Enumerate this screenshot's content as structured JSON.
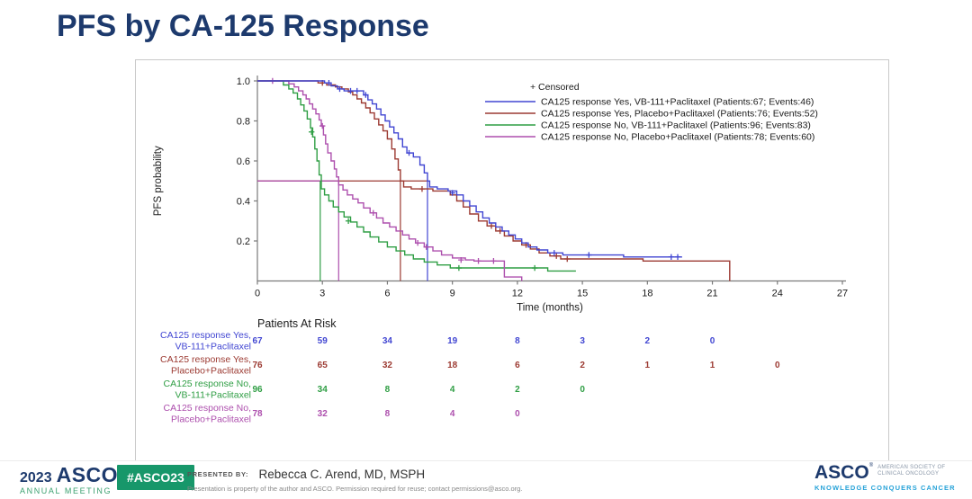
{
  "title": "PFS by CA-125 Response",
  "colors": {
    "title_navy": "#1d3a6d",
    "panel_border": "#c9c9c9",
    "axis": "#7a7a7a",
    "tick_text": "#1a1a1a",
    "footer_green": "#17976a",
    "meeting_green": "#3aa06f",
    "tagline_blue": "#26a2d8"
  },
  "chart_data": {
    "type": "line",
    "subtype": "kaplan-meier-step",
    "title": "",
    "xlabel": "Time (months)",
    "ylabel": "PFS probability",
    "xlim": [
      0,
      27
    ],
    "ylim": [
      0,
      1.0
    ],
    "xticks": [
      0,
      3,
      6,
      9,
      12,
      15,
      18,
      21,
      24,
      27
    ],
    "yticks": [
      0.2,
      0.4,
      0.6,
      0.8,
      1.0
    ],
    "grid": false,
    "legend_position": "top-right",
    "censored_label": "+ Censored",
    "at_risk_header": "Patients At Risk",
    "median_rule": {
      "p": 0.5,
      "horizontal_segments": [
        {
          "from": 0,
          "to": 7.85,
          "series": 1
        },
        {
          "from": 0,
          "to": 3.75,
          "series": 3
        }
      ]
    },
    "series": [
      {
        "name": "CA125 response Yes, VB-111+Paclitaxel (Patients:67; Events:46)",
        "label_lines": [
          "CA125 response Yes,",
          "VB-111+Paclitaxel"
        ],
        "color": "#4146d2",
        "median_months": 7.85,
        "end_drop": false,
        "at_risk": {
          "months": [
            0,
            3,
            6,
            9,
            12,
            15,
            18,
            21
          ],
          "counts": [
            67,
            59,
            34,
            19,
            8,
            3,
            2,
            0
          ]
        },
        "steps": [
          [
            0,
            1
          ],
          [
            3.1,
            0.99
          ],
          [
            3.4,
            0.975
          ],
          [
            3.7,
            0.96
          ],
          [
            4.0,
            0.95
          ],
          [
            4.9,
            0.93
          ],
          [
            5.1,
            0.905
          ],
          [
            5.3,
            0.885
          ],
          [
            5.5,
            0.86
          ],
          [
            5.7,
            0.83
          ],
          [
            5.9,
            0.8
          ],
          [
            6.1,
            0.77
          ],
          [
            6.3,
            0.74
          ],
          [
            6.5,
            0.71
          ],
          [
            6.7,
            0.67
          ],
          [
            6.9,
            0.64
          ],
          [
            7.2,
            0.62
          ],
          [
            7.5,
            0.58
          ],
          [
            7.7,
            0.54
          ],
          [
            7.85,
            0.5
          ],
          [
            7.95,
            0.47
          ],
          [
            8.3,
            0.46
          ],
          [
            8.8,
            0.45
          ],
          [
            9.2,
            0.43
          ],
          [
            9.5,
            0.4
          ],
          [
            9.8,
            0.375
          ],
          [
            10.1,
            0.345
          ],
          [
            10.4,
            0.315
          ],
          [
            10.7,
            0.29
          ],
          [
            11.0,
            0.27
          ],
          [
            11.3,
            0.25
          ],
          [
            11.6,
            0.23
          ],
          [
            11.9,
            0.21
          ],
          [
            12.2,
            0.19
          ],
          [
            12.5,
            0.17
          ],
          [
            12.9,
            0.155
          ],
          [
            13.4,
            0.14
          ],
          [
            14.1,
            0.13
          ],
          [
            16.9,
            0.12
          ],
          [
            19.6,
            0.12
          ]
        ],
        "censors": [
          [
            3.3,
            0.99
          ],
          [
            3.8,
            0.96
          ],
          [
            4.3,
            0.95
          ],
          [
            4.6,
            0.95
          ],
          [
            5.0,
            0.93
          ],
          [
            7.0,
            0.64
          ],
          [
            9.0,
            0.44
          ],
          [
            13.7,
            0.14
          ],
          [
            15.3,
            0.13
          ],
          [
            19.1,
            0.12
          ],
          [
            19.4,
            0.12
          ]
        ]
      },
      {
        "name": "CA125 response Yes, Placebo+Paclitaxel (Patients:76; Events:52)",
        "label_lines": [
          "CA125 response Yes,",
          "Placebo+Paclitaxel"
        ],
        "color": "#9c3a32",
        "median_months": 6.6,
        "end_drop": true,
        "at_risk": {
          "months": [
            0,
            3,
            6,
            9,
            12,
            15,
            18,
            21,
            24
          ],
          "counts": [
            76,
            65,
            32,
            18,
            6,
            2,
            1,
            1,
            0
          ]
        },
        "steps": [
          [
            0,
            1
          ],
          [
            2.8,
            0.99
          ],
          [
            3.2,
            0.98
          ],
          [
            3.6,
            0.97
          ],
          [
            3.9,
            0.96
          ],
          [
            4.2,
            0.945
          ],
          [
            4.4,
            0.93
          ],
          [
            4.6,
            0.91
          ],
          [
            4.8,
            0.89
          ],
          [
            5.0,
            0.865
          ],
          [
            5.2,
            0.84
          ],
          [
            5.4,
            0.81
          ],
          [
            5.6,
            0.78
          ],
          [
            5.8,
            0.75
          ],
          [
            6.0,
            0.71
          ],
          [
            6.2,
            0.66
          ],
          [
            6.35,
            0.61
          ],
          [
            6.5,
            0.555
          ],
          [
            6.6,
            0.5
          ],
          [
            6.75,
            0.47
          ],
          [
            7.1,
            0.46
          ],
          [
            8.1,
            0.45
          ],
          [
            8.9,
            0.43
          ],
          [
            9.2,
            0.4
          ],
          [
            9.5,
            0.37
          ],
          [
            9.8,
            0.335
          ],
          [
            10.2,
            0.3
          ],
          [
            10.6,
            0.275
          ],
          [
            11.0,
            0.25
          ],
          [
            11.4,
            0.225
          ],
          [
            11.8,
            0.2
          ],
          [
            12.2,
            0.18
          ],
          [
            12.6,
            0.16
          ],
          [
            13.0,
            0.14
          ],
          [
            13.5,
            0.125
          ],
          [
            14.0,
            0.11
          ],
          [
            17.8,
            0.1
          ],
          [
            21.8,
            0.1
          ]
        ],
        "censors": [
          [
            3.0,
            0.99
          ],
          [
            7.6,
            0.46
          ],
          [
            10.8,
            0.275
          ],
          [
            11.2,
            0.25
          ],
          [
            12.4,
            0.18
          ],
          [
            13.8,
            0.125
          ],
          [
            14.3,
            0.11
          ]
        ]
      },
      {
        "name": "CA125 response No, VB-111+Paclitaxel (Patients:96; Events:83)",
        "label_lines": [
          "CA125 response No,",
          "VB-111+Paclitaxel"
        ],
        "color": "#2f9e44",
        "median_months": 2.9,
        "end_drop": false,
        "at_risk": {
          "months": [
            0,
            3,
            6,
            9,
            12,
            15
          ],
          "counts": [
            96,
            34,
            8,
            4,
            2,
            0
          ]
        },
        "steps": [
          [
            0,
            1
          ],
          [
            1.2,
            0.98
          ],
          [
            1.45,
            0.96
          ],
          [
            1.65,
            0.94
          ],
          [
            1.85,
            0.91
          ],
          [
            2.0,
            0.88
          ],
          [
            2.15,
            0.85
          ],
          [
            2.3,
            0.81
          ],
          [
            2.45,
            0.765
          ],
          [
            2.55,
            0.72
          ],
          [
            2.65,
            0.66
          ],
          [
            2.75,
            0.6
          ],
          [
            2.85,
            0.53
          ],
          [
            2.95,
            0.46
          ],
          [
            3.1,
            0.43
          ],
          [
            3.3,
            0.4
          ],
          [
            3.5,
            0.37
          ],
          [
            3.75,
            0.345
          ],
          [
            4.0,
            0.32
          ],
          [
            4.3,
            0.295
          ],
          [
            4.6,
            0.27
          ],
          [
            4.9,
            0.245
          ],
          [
            5.2,
            0.22
          ],
          [
            5.6,
            0.195
          ],
          [
            6.0,
            0.17
          ],
          [
            6.4,
            0.15
          ],
          [
            6.8,
            0.13
          ],
          [
            7.2,
            0.11
          ],
          [
            7.7,
            0.095
          ],
          [
            8.3,
            0.08
          ],
          [
            8.9,
            0.065
          ],
          [
            13.4,
            0.05
          ],
          [
            14.7,
            0.05
          ]
        ],
        "censors": [
          [
            2.5,
            0.745
          ],
          [
            4.2,
            0.3
          ],
          [
            9.3,
            0.065
          ],
          [
            12.8,
            0.065
          ]
        ]
      },
      {
        "name": "CA125 response No, Placebo+Paclitaxel (Patients:78; Events:60)",
        "label_lines": [
          "CA125 response No,",
          "Placebo+Paclitaxel"
        ],
        "color": "#ad4fad",
        "median_months": 3.75,
        "end_drop": true,
        "at_risk": {
          "months": [
            0,
            3,
            6,
            9,
            12
          ],
          "counts": [
            78,
            32,
            8,
            4,
            0
          ]
        },
        "steps": [
          [
            0,
            1
          ],
          [
            1.45,
            0.985
          ],
          [
            1.7,
            0.97
          ],
          [
            1.9,
            0.95
          ],
          [
            2.1,
            0.93
          ],
          [
            2.25,
            0.91
          ],
          [
            2.4,
            0.885
          ],
          [
            2.55,
            0.86
          ],
          [
            2.7,
            0.835
          ],
          [
            2.85,
            0.805
          ],
          [
            2.95,
            0.775
          ],
          [
            3.05,
            0.73
          ],
          [
            3.15,
            0.685
          ],
          [
            3.25,
            0.64
          ],
          [
            3.4,
            0.6
          ],
          [
            3.55,
            0.56
          ],
          [
            3.65,
            0.52
          ],
          [
            3.75,
            0.48
          ],
          [
            3.95,
            0.455
          ],
          [
            4.15,
            0.43
          ],
          [
            4.4,
            0.41
          ],
          [
            4.65,
            0.39
          ],
          [
            4.9,
            0.365
          ],
          [
            5.2,
            0.34
          ],
          [
            5.5,
            0.315
          ],
          [
            5.8,
            0.29
          ],
          [
            6.1,
            0.27
          ],
          [
            6.4,
            0.25
          ],
          [
            6.7,
            0.23
          ],
          [
            7.0,
            0.21
          ],
          [
            7.3,
            0.19
          ],
          [
            7.7,
            0.17
          ],
          [
            8.1,
            0.15
          ],
          [
            8.5,
            0.13
          ],
          [
            9.0,
            0.115
          ],
          [
            9.6,
            0.105
          ],
          [
            10.0,
            0.1
          ],
          [
            11.4,
            0.02
          ],
          [
            12.2,
            0.02
          ]
        ],
        "censors": [
          [
            0.7,
            1.0
          ],
          [
            3.0,
            0.775
          ],
          [
            5.35,
            0.34
          ],
          [
            7.4,
            0.19
          ],
          [
            7.8,
            0.17
          ],
          [
            9.4,
            0.105
          ],
          [
            10.2,
            0.1
          ],
          [
            10.9,
            0.1
          ]
        ]
      }
    ]
  },
  "footer": {
    "year": "2023",
    "logo_text": "ASCO",
    "reg_mark": "®",
    "meeting": "ANNUAL MEETING",
    "hashtag": "#ASCO23",
    "presented_label": "PRESENTED BY:",
    "presenter": "Rebecca C. Arend, MD, MSPH",
    "disclaimer": "Presentation is property of the author and ASCO. Permission required for reuse; contact permissions@asco.org.",
    "right_logo_text": "ASCO",
    "society_line1": "AMERICAN SOCIETY OF",
    "society_line2": "CLINICAL ONCOLOGY",
    "tagline": "KNOWLEDGE CONQUERS CANCER"
  }
}
